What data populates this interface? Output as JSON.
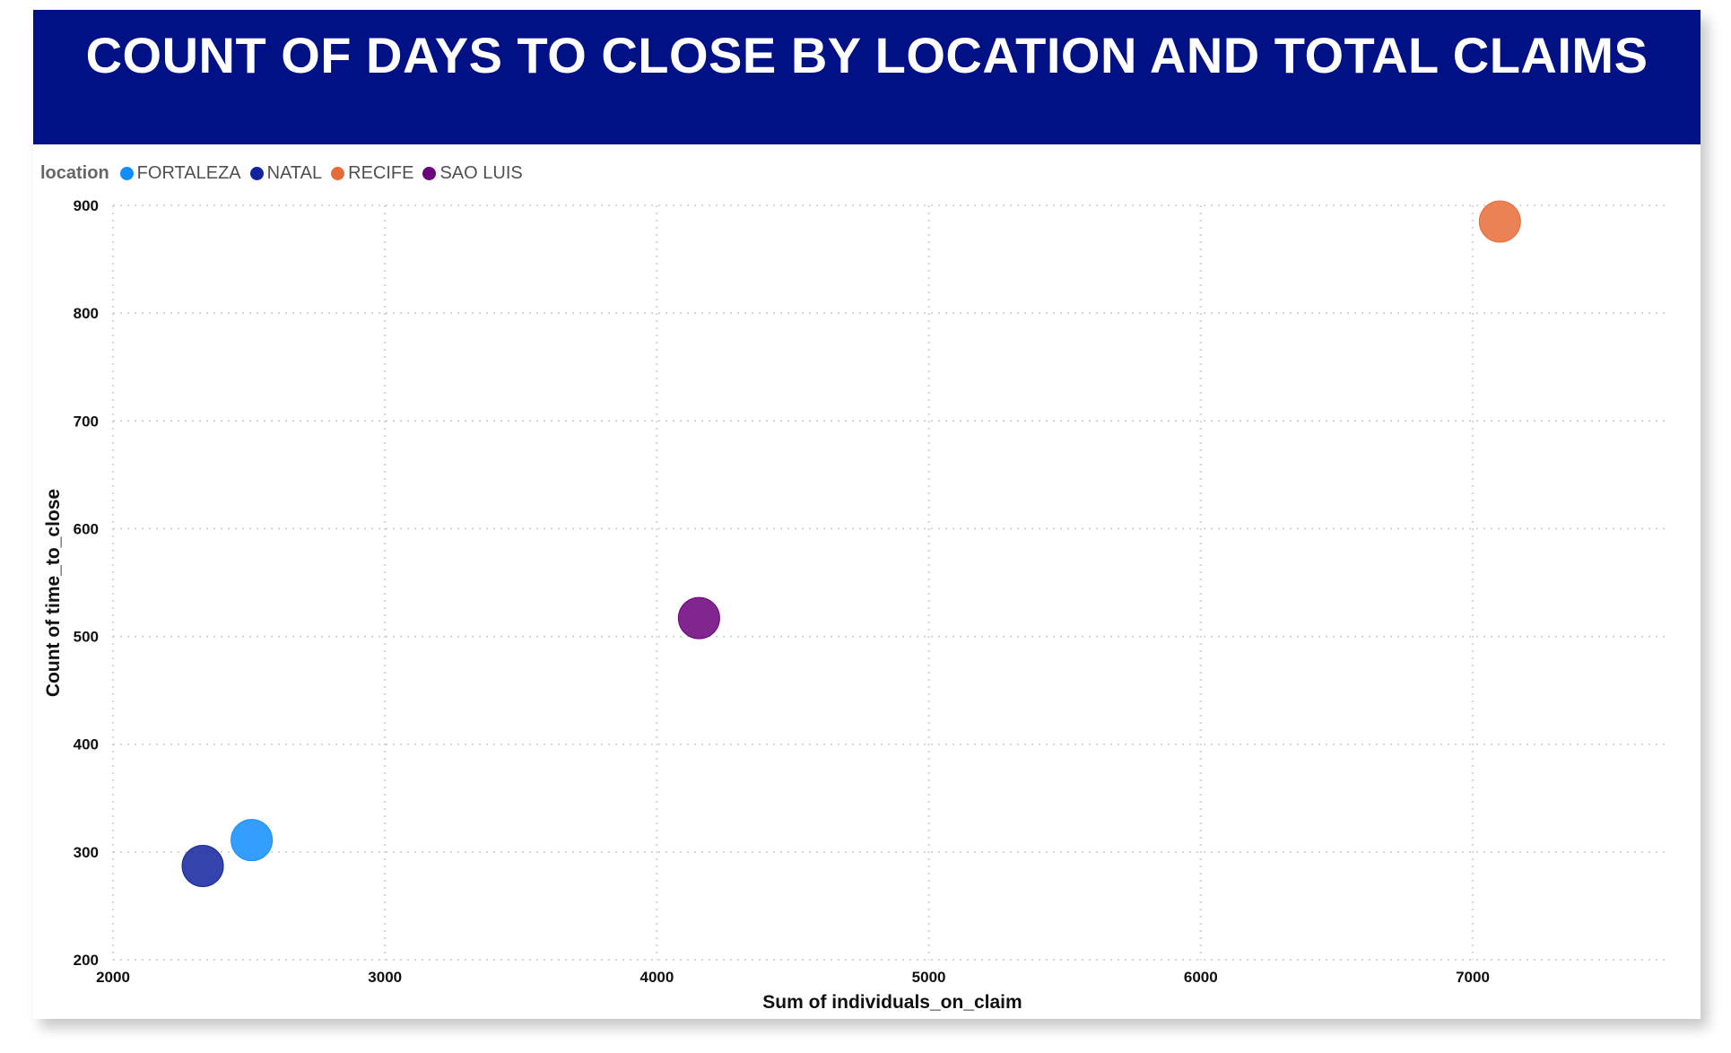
{
  "chart_data": {
    "type": "scatter",
    "title": "COUNT OF DAYS TO CLOSE BY LOCATION AND TOTAL CLAIMS",
    "xlabel": "Sum of individuals_on_claim",
    "ylabel": "Count of time_to_close",
    "xlim": [
      2000,
      7500
    ],
    "ylim": [
      200,
      900
    ],
    "x_ticks": [
      2000,
      3000,
      4000,
      5000,
      6000,
      7000
    ],
    "y_ticks": [
      200,
      300,
      400,
      500,
      600,
      700,
      800,
      900
    ],
    "grid": true,
    "legend": {
      "title": "location",
      "position": "top-left"
    },
    "series": [
      {
        "name": "FORTALEZA",
        "color": "#118DFF",
        "points": [
          {
            "x": 2510,
            "y": 311
          }
        ]
      },
      {
        "name": "NATAL",
        "color": "#12239E",
        "points": [
          {
            "x": 2330,
            "y": 287
          }
        ]
      },
      {
        "name": "RECIFE",
        "color": "#E66C37",
        "points": [
          {
            "x": 7100,
            "y": 885
          }
        ]
      },
      {
        "name": "SAO LUIS",
        "color": "#6B007B",
        "points": [
          {
            "x": 4155,
            "y": 517
          }
        ]
      }
    ]
  }
}
